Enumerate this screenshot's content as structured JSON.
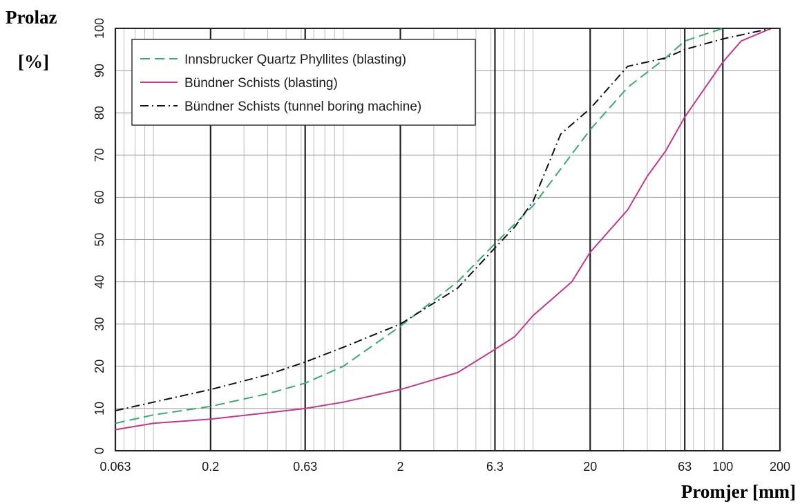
{
  "y_title_line1": "Prolaz",
  "y_title_line2": "[%]",
  "x_title": "Promjer [mm]",
  "chart_data": {
    "type": "line",
    "title": "",
    "xlabel": "Promjer [mm]",
    "ylabel": "Prolaz [%]",
    "x_scale": "log",
    "xlim": [
      0.063,
      200
    ],
    "ylim": [
      0,
      100
    ],
    "x_ticks": [
      "0.063",
      "0.2",
      "0.63",
      "2",
      "6.3",
      "20",
      "63",
      "100",
      "200"
    ],
    "y_ticks": [
      "0",
      "10",
      "20",
      "30",
      "40",
      "50",
      "60",
      "70",
      "80",
      "90",
      "100"
    ],
    "grid": true,
    "legend_position": "top-left",
    "series": [
      {
        "name": "Innsbrucker Quartz Phyllites (blasting)",
        "color": "#3aaa6e",
        "dash": "dashed",
        "points": [
          [
            0.063,
            6.5
          ],
          [
            0.1,
            8.5
          ],
          [
            0.2,
            10.5
          ],
          [
            0.4,
            13.5
          ],
          [
            0.63,
            16
          ],
          [
            1,
            20
          ],
          [
            2,
            29.5
          ],
          [
            4,
            40
          ],
          [
            6.3,
            49
          ],
          [
            10,
            58
          ],
          [
            20,
            76
          ],
          [
            31.5,
            86
          ],
          [
            50,
            93
          ],
          [
            63,
            97
          ],
          [
            100,
            100
          ]
        ]
      },
      {
        "name": "Bündner Schists (blasting)",
        "color": "#c2388a",
        "dash": "solid",
        "points": [
          [
            0.063,
            5
          ],
          [
            0.1,
            6.5
          ],
          [
            0.2,
            7.5
          ],
          [
            0.4,
            9
          ],
          [
            0.63,
            10
          ],
          [
            1,
            11.5
          ],
          [
            2,
            14.5
          ],
          [
            4,
            18.5
          ],
          [
            6.3,
            24
          ],
          [
            8,
            27
          ],
          [
            10,
            32
          ],
          [
            16,
            40
          ],
          [
            20,
            47
          ],
          [
            31.5,
            57
          ],
          [
            40,
            65
          ],
          [
            50,
            71
          ],
          [
            63,
            79
          ],
          [
            100,
            92
          ],
          [
            125,
            97
          ],
          [
            180,
            100
          ]
        ]
      },
      {
        "name": "Bündner Schists (tunnel boring machine)",
        "color": "#111111",
        "dash": "dashdot",
        "points": [
          [
            0.063,
            9.5
          ],
          [
            0.1,
            11.5
          ],
          [
            0.2,
            14.5
          ],
          [
            0.4,
            18
          ],
          [
            0.63,
            21
          ],
          [
            1,
            24.5
          ],
          [
            2,
            30
          ],
          [
            4,
            38.5
          ],
          [
            6.3,
            48
          ],
          [
            8,
            53
          ],
          [
            10,
            59
          ],
          [
            14,
            75
          ],
          [
            20,
            81
          ],
          [
            31.5,
            91
          ],
          [
            50,
            93
          ],
          [
            63,
            95
          ],
          [
            100,
            97.5
          ],
          [
            180,
            100
          ]
        ]
      }
    ]
  }
}
